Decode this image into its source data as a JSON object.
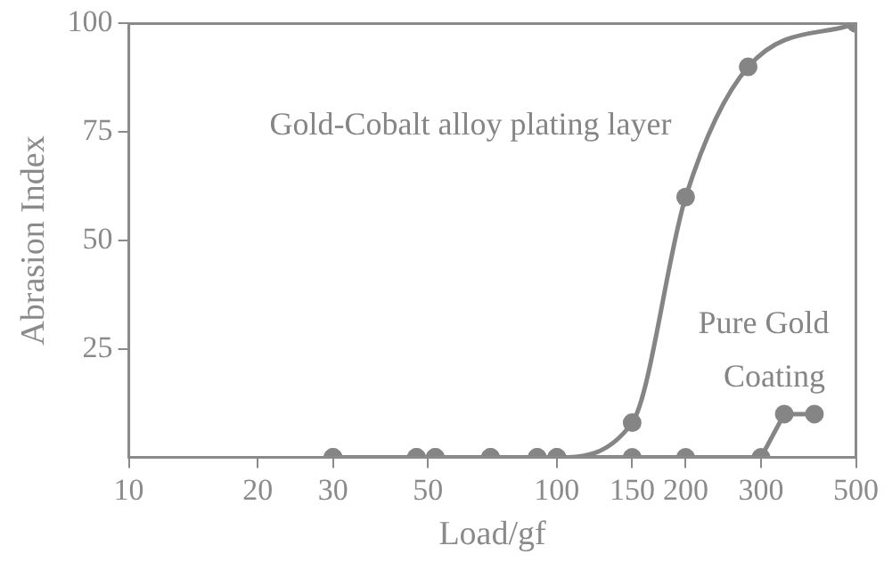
{
  "chart_data": {
    "type": "line",
    "xlabel": "Load/gf",
    "ylabel": "Abrasion Index",
    "log": "x",
    "xlim": [
      10,
      500
    ],
    "xticks": [
      10,
      20,
      30,
      50,
      100,
      150,
      200,
      300,
      500
    ],
    "ylim": [
      0,
      100
    ],
    "yticks": [
      25,
      50,
      75,
      100
    ],
    "grid": false,
    "legend": false,
    "marker": "circle",
    "series": [
      {
        "name": "Gold-Cobalt alloy plating layer",
        "color": "#858585",
        "x": [
          30,
          47,
          52,
          70,
          90,
          100,
          150,
          200,
          280,
          500
        ],
        "values": [
          0,
          0,
          0,
          0,
          0,
          0,
          8,
          60,
          90,
          100
        ]
      },
      {
        "name": "Pure Gold Coating",
        "color": "#858585",
        "x": [
          30,
          47,
          52,
          70,
          90,
          100,
          150,
          200,
          300,
          340,
          400
        ],
        "values": [
          0,
          0,
          0,
          0,
          0,
          0,
          0,
          0,
          0,
          10,
          10
        ]
      }
    ]
  }
}
